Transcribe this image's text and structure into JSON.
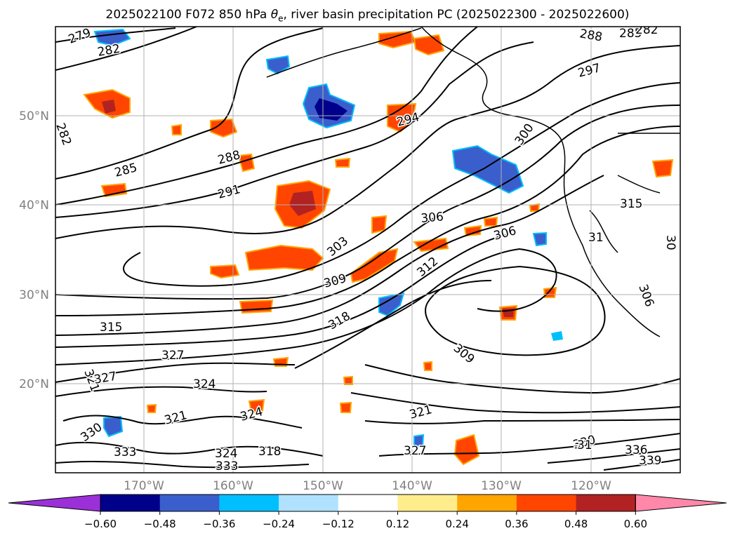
{
  "title": {
    "prefix": "2025022100 F072 850 hPa ",
    "theta": "θ",
    "theta_sub": "e",
    "suffix": ", river basin precipitation PC (2025022300 - 2025022600)"
  },
  "map": {
    "lat_ticks": [
      "50°N",
      "40°N",
      "30°N",
      "20°N"
    ],
    "lon_ticks": [
      "170°W",
      "160°W",
      "150°W",
      "140°W",
      "130°W",
      "120°W"
    ],
    "contour_labels": [
      "279",
      "282",
      "282",
      "285",
      "288",
      "291",
      "294",
      "297",
      "300",
      "303",
      "306",
      "306",
      "309",
      "309",
      "312",
      "315",
      "315",
      "318",
      "318",
      "321",
      "321",
      "321",
      "324",
      "324",
      "324",
      "327",
      "327",
      "327",
      "330",
      "330",
      "333",
      "333",
      "336",
      "339",
      "288",
      "285",
      "282",
      "31",
      "306",
      "31",
      "30"
    ],
    "colors": {
      "land_contour": "#000000",
      "gridline": "#b0b0b0",
      "tick_label": "#808080"
    }
  },
  "colorbar": {
    "tick_labels": [
      "−0.60",
      "−0.48",
      "−0.36",
      "−0.24",
      "−0.12",
      "0.12",
      "0.24",
      "0.36",
      "0.48",
      "0.60"
    ],
    "colors": [
      "#9b30d9",
      "#00008b",
      "#3a5fcd",
      "#00bfff",
      "#b0e2ff",
      "#ffffff",
      "#ffec8b",
      "#ffa500",
      "#ff4500",
      "#b22222",
      "#ff88aa"
    ]
  }
}
